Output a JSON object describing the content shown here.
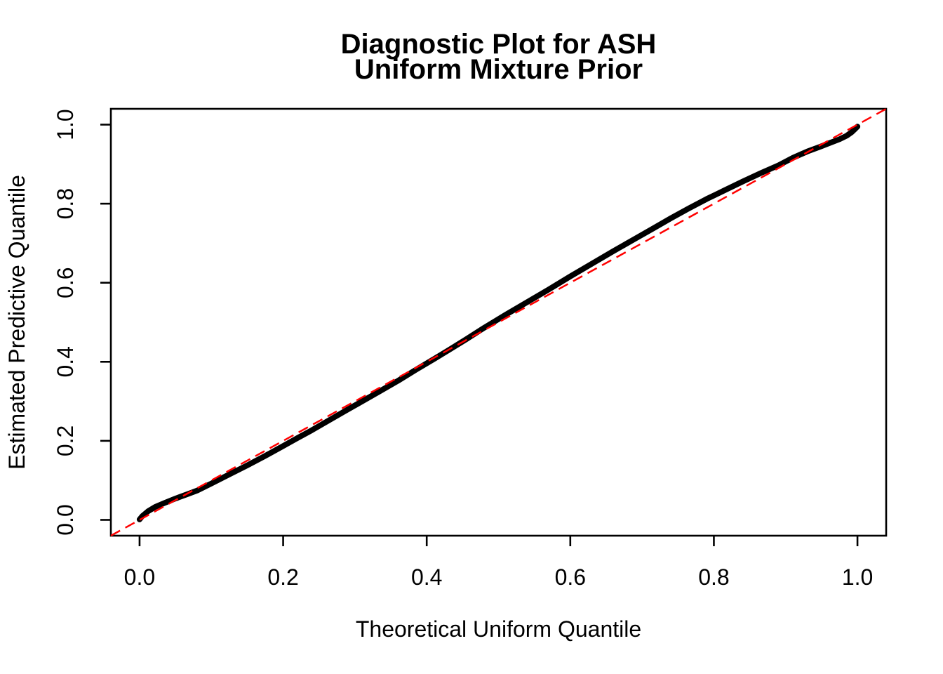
{
  "title": {
    "line1": "Diagnostic Plot for ASH",
    "line2": "Uniform Mixture Prior"
  },
  "axes": {
    "xlabel": "Theoretical Uniform Quantile",
    "ylabel": "Estimated Predictive Quantile"
  },
  "colors": {
    "background": "#FFFFFF",
    "axis": "#000000",
    "curve": "#000000",
    "reference_line": "#FF0000"
  },
  "chart_data": {
    "type": "line",
    "title": "Diagnostic Plot for ASH\nUniform Mixture Prior",
    "xlabel": "Theoretical Uniform Quantile",
    "ylabel": "Estimated Predictive Quantile",
    "xlim": [
      -0.04,
      1.04
    ],
    "ylim": [
      -0.04,
      1.04
    ],
    "x_ticks": [
      0.0,
      0.2,
      0.4,
      0.6,
      0.8,
      1.0
    ],
    "y_ticks": [
      0.0,
      0.2,
      0.4,
      0.6,
      0.8,
      1.0
    ],
    "x_tick_labels": [
      "0.0",
      "0.2",
      "0.4",
      "0.6",
      "0.8",
      "1.0"
    ],
    "y_tick_labels": [
      "0.0",
      "0.2",
      "0.4",
      "0.6",
      "0.8",
      "1.0"
    ],
    "grid": false,
    "legend_position": "none",
    "series": [
      {
        "name": "estimated-predictive-quantiles",
        "color": "#000000",
        "line_width": 8,
        "dashed": false,
        "points": [
          [
            0.0,
            0.001
          ],
          [
            0.004,
            0.01
          ],
          [
            0.012,
            0.022
          ],
          [
            0.022,
            0.033
          ],
          [
            0.035,
            0.043
          ],
          [
            0.05,
            0.054
          ],
          [
            0.065,
            0.064
          ],
          [
            0.08,
            0.074
          ],
          [
            0.1,
            0.092
          ],
          [
            0.125,
            0.115
          ],
          [
            0.15,
            0.138
          ],
          [
            0.175,
            0.162
          ],
          [
            0.2,
            0.187
          ],
          [
            0.22,
            0.207
          ],
          [
            0.24,
            0.227
          ],
          [
            0.26,
            0.248
          ],
          [
            0.285,
            0.274
          ],
          [
            0.31,
            0.3
          ],
          [
            0.335,
            0.326
          ],
          [
            0.36,
            0.352
          ],
          [
            0.385,
            0.38
          ],
          [
            0.41,
            0.407
          ],
          [
            0.43,
            0.429
          ],
          [
            0.455,
            0.457
          ],
          [
            0.48,
            0.486
          ],
          [
            0.51,
            0.519
          ],
          [
            0.54,
            0.551
          ],
          [
            0.57,
            0.583
          ],
          [
            0.6,
            0.616
          ],
          [
            0.63,
            0.648
          ],
          [
            0.66,
            0.68
          ],
          [
            0.69,
            0.711
          ],
          [
            0.715,
            0.737
          ],
          [
            0.74,
            0.763
          ],
          [
            0.765,
            0.788
          ],
          [
            0.79,
            0.812
          ],
          [
            0.815,
            0.834
          ],
          [
            0.84,
            0.856
          ],
          [
            0.865,
            0.877
          ],
          [
            0.89,
            0.897
          ],
          [
            0.91,
            0.916
          ],
          [
            0.93,
            0.932
          ],
          [
            0.948,
            0.944
          ],
          [
            0.962,
            0.954
          ],
          [
            0.975,
            0.963
          ],
          [
            0.985,
            0.972
          ],
          [
            0.992,
            0.981
          ],
          [
            0.996,
            0.988
          ],
          [
            1.0,
            0.995
          ]
        ]
      },
      {
        "name": "reference-diagonal-y-equals-x",
        "color": "#FF0000",
        "line_width": 2.5,
        "dashed": true,
        "points": [
          [
            -0.04,
            -0.04
          ],
          [
            1.04,
            1.04
          ]
        ]
      }
    ]
  }
}
